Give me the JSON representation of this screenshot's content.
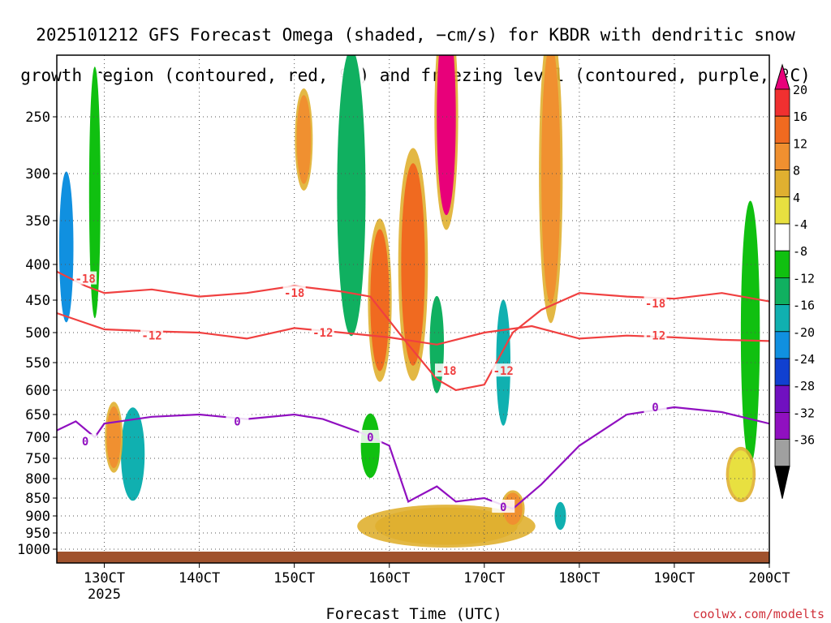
{
  "title_line1": "2025101212 GFS Forecast Omega (shaded, −cm/s) for KBDR with dendritic snow",
  "title_line2": "growth region (contoured, red, ºC) and freezing level (contoured, purple, ºC)",
  "xlabel": "Forecast Time (UTC)",
  "credit": "coolwx.com/modelts",
  "chart_data": {
    "type": "heatmap",
    "x_ticks": [
      "130CT",
      "140CT",
      "150CT",
      "160CT",
      "170CT",
      "180CT",
      "190CT",
      "200CT"
    ],
    "x_tick_sub": "2025",
    "y_ticks": [
      250,
      300,
      350,
      400,
      450,
      500,
      550,
      600,
      650,
      700,
      750,
      800,
      850,
      900,
      950,
      1000
    ],
    "y_axis": "pressure (hPa), inverted",
    "xlim_days": [
      12.5,
      20.0
    ],
    "colorbar": {
      "labels": [
        20,
        16,
        12,
        8,
        4,
        -4,
        -8,
        -12,
        -16,
        -20,
        -24,
        -28,
        -32,
        -36
      ],
      "colors": [
        "#e8007a",
        "#f03030",
        "#f06a20",
        "#f09030",
        "#e0b030",
        "#e8e040",
        "#ffffff",
        "#10c010",
        "#10b060",
        "#10b0b0",
        "#1090e0",
        "#1040d0",
        "#7010c0",
        "#9010c0",
        "#a0a0a0",
        "#000000"
      ]
    },
    "contours": {
      "minus12": [
        [
          12.5,
          470
        ],
        [
          12.8,
          485
        ],
        [
          13.0,
          495
        ],
        [
          13.5,
          498
        ],
        [
          14.0,
          500
        ],
        [
          14.5,
          510
        ],
        [
          15.0,
          493
        ],
        [
          15.5,
          500
        ],
        [
          16.0,
          508
        ],
        [
          16.5,
          520
        ],
        [
          17.0,
          500
        ],
        [
          17.5,
          490
        ],
        [
          18.0,
          510
        ],
        [
          18.5,
          505
        ],
        [
          19.0,
          508
        ],
        [
          19.5,
          512
        ],
        [
          20.0,
          514
        ]
      ],
      "minus18": [
        [
          12.5,
          410
        ],
        [
          12.8,
          430
        ],
        [
          13.0,
          440
        ],
        [
          13.5,
          435
        ],
        [
          14.0,
          445
        ],
        [
          14.5,
          440
        ],
        [
          15.0,
          430
        ],
        [
          15.5,
          438
        ],
        [
          15.8,
          445
        ],
        [
          16.2,
          520
        ],
        [
          16.5,
          580
        ],
        [
          16.7,
          600
        ],
        [
          17.0,
          590
        ],
        [
          17.3,
          500
        ],
        [
          17.6,
          465
        ],
        [
          18.0,
          440
        ],
        [
          18.5,
          445
        ],
        [
          19.0,
          448
        ],
        [
          19.5,
          440
        ],
        [
          20.0,
          452
        ]
      ],
      "zero": [
        [
          12.5,
          685
        ],
        [
          12.7,
          665
        ],
        [
          12.9,
          700
        ],
        [
          13.0,
          670
        ],
        [
          13.5,
          655
        ],
        [
          14.0,
          650
        ],
        [
          14.5,
          660
        ],
        [
          15.0,
          650
        ],
        [
          15.3,
          660
        ],
        [
          15.7,
          690
        ],
        [
          16.0,
          720
        ],
        [
          16.2,
          860
        ],
        [
          16.5,
          820
        ],
        [
          16.7,
          860
        ],
        [
          17.0,
          850
        ],
        [
          17.3,
          880
        ],
        [
          17.6,
          815
        ],
        [
          18.0,
          720
        ],
        [
          18.5,
          650
        ],
        [
          19.0,
          635
        ],
        [
          19.5,
          645
        ],
        [
          20.0,
          670
        ]
      ]
    },
    "contour_labels": [
      {
        "text": "-18",
        "day": 12.8,
        "p": 420
      },
      {
        "text": "-18",
        "day": 15.0,
        "p": 440
      },
      {
        "text": "-12",
        "day": 13.5,
        "p": 505
      },
      {
        "text": "-12",
        "day": 15.3,
        "p": 500
      },
      {
        "text": "-18",
        "day": 16.6,
        "p": 565
      },
      {
        "text": "-12",
        "day": 17.2,
        "p": 565
      },
      {
        "text": "-18",
        "day": 18.8,
        "p": 455
      },
      {
        "text": "-12",
        "day": 18.8,
        "p": 505
      },
      {
        "text": "0",
        "day": 12.8,
        "p": 710
      },
      {
        "text": "0",
        "day": 14.4,
        "p": 665
      },
      {
        "text": "0",
        "day": 15.8,
        "p": 700
      },
      {
        "text": "0",
        "day": 17.2,
        "p": 875
      },
      {
        "text": "0",
        "day": 18.8,
        "p": 635
      }
    ],
    "contour_colors": {
      "dgz": "#f04040",
      "freezing": "#9010c0"
    },
    "omega_patches": [
      {
        "day": 12.6,
        "p": 380,
        "w": 0.15,
        "h": 180,
        "v": -20
      },
      {
        "day": 12.9,
        "p": 320,
        "w": 0.12,
        "h": 260,
        "v": -8
      },
      {
        "day": 13.3,
        "p": 740,
        "w": 0.25,
        "h": 220,
        "v": -16
      },
      {
        "day": 13.1,
        "p": 700,
        "w": 0.15,
        "h": 140,
        "v": 12
      },
      {
        "day": 15.1,
        "p": 270,
        "w": 0.15,
        "h": 80,
        "v": 12
      },
      {
        "day": 15.6,
        "p": 320,
        "w": 0.3,
        "h": 300,
        "v": -12
      },
      {
        "day": 15.9,
        "p": 450,
        "w": 0.2,
        "h": 200,
        "v": 14
      },
      {
        "day": 16.25,
        "p": 400,
        "w": 0.25,
        "h": 250,
        "v": 16
      },
      {
        "day": 16.6,
        "p": 250,
        "w": 0.2,
        "h": 180,
        "v": 20
      },
      {
        "day": 16.5,
        "p": 520,
        "w": 0.15,
        "h": 160,
        "v": -12
      },
      {
        "day": 17.2,
        "p": 550,
        "w": 0.15,
        "h": 220,
        "v": -16
      },
      {
        "day": 17.7,
        "p": 300,
        "w": 0.2,
        "h": 260,
        "v": 12
      },
      {
        "day": 16.6,
        "p": 930,
        "w": 1.5,
        "h": 110,
        "v": 8
      },
      {
        "day": 17.3,
        "p": 880,
        "w": 0.2,
        "h": 90,
        "v": 12
      },
      {
        "day": 17.8,
        "p": 900,
        "w": 0.12,
        "h": 80,
        "v": -16
      },
      {
        "day": 19.8,
        "p": 500,
        "w": 0.2,
        "h": 400,
        "v": -8
      },
      {
        "day": 19.7,
        "p": 790,
        "w": 0.25,
        "h": 120,
        "v": 4
      },
      {
        "day": 15.8,
        "p": 720,
        "w": 0.2,
        "h": 150,
        "v": -8
      }
    ]
  }
}
